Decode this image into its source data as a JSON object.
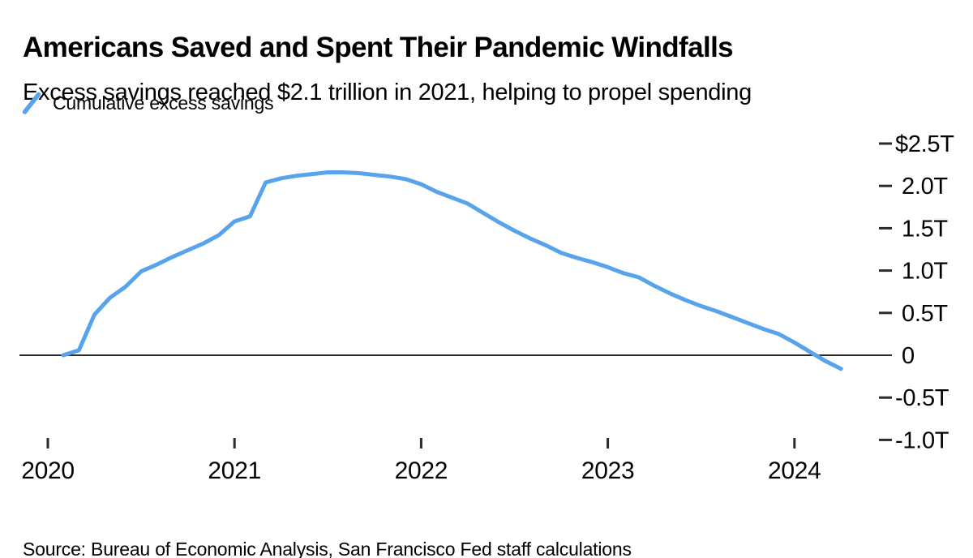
{
  "page": {
    "background": "#ffffff",
    "text_color": "#000000"
  },
  "chart_data": {
    "type": "line",
    "title": "Americans Saved and Spent Their Pandemic Windfalls",
    "subtitle": "Excess savings reached $2.1 trillion in 2021, helping to propel spending",
    "source": "Source: Bureau of Economic Analysis, San Francisco Fed staff calculations",
    "legend": {
      "label": "Cumulative excess savings",
      "position": "top-left",
      "marker": "slash"
    },
    "unit": "trillions of US dollars",
    "grid": false,
    "zero_line": true,
    "y_axis_side": "right",
    "xlim": [
      2019.95,
      2024.55
    ],
    "ylim": [
      -1.0,
      2.5
    ],
    "axis_color": "#2b2b2b",
    "series": [
      {
        "name": "Cumulative excess savings",
        "color": "#57A3EC",
        "x": [
          2020.083,
          2020.167,
          2020.25,
          2020.333,
          2020.417,
          2020.5,
          2020.583,
          2020.667,
          2020.75,
          2020.833,
          2020.917,
          2021,
          2021.083,
          2021.167,
          2021.25,
          2021.333,
          2021.417,
          2021.5,
          2021.583,
          2021.667,
          2021.75,
          2021.833,
          2021.917,
          2022,
          2022.083,
          2022.167,
          2022.25,
          2022.333,
          2022.417,
          2022.5,
          2022.583,
          2022.667,
          2022.75,
          2022.833,
          2022.917,
          2023,
          2023.083,
          2023.167,
          2023.25,
          2023.333,
          2023.417,
          2023.5,
          2023.583,
          2023.667,
          2023.75,
          2023.833,
          2023.917,
          2024,
          2024.083,
          2024.167,
          2024.25
        ],
        "values": [
          0.0,
          0.06,
          0.48,
          0.68,
          0.81,
          0.99,
          1.07,
          1.16,
          1.24,
          1.32,
          1.42,
          1.58,
          1.64,
          2.04,
          2.09,
          2.12,
          2.14,
          2.16,
          2.16,
          2.15,
          2.13,
          2.11,
          2.08,
          2.02,
          1.93,
          1.86,
          1.79,
          1.68,
          1.57,
          1.47,
          1.38,
          1.3,
          1.21,
          1.15,
          1.1,
          1.04,
          0.97,
          0.92,
          0.82,
          0.73,
          0.65,
          0.58,
          0.52,
          0.45,
          0.38,
          0.31,
          0.25,
          0.15,
          0.04,
          -0.07,
          -0.16
        ]
      }
    ],
    "xticks": [
      {
        "x": 2020,
        "label": "2020"
      },
      {
        "x": 2021,
        "label": "2021"
      },
      {
        "x": 2022,
        "label": "2022"
      },
      {
        "x": 2023,
        "label": "2023"
      },
      {
        "x": 2024,
        "label": "2024"
      }
    ],
    "yticks": [
      {
        "v": 2.5,
        "label": "$2.5T"
      },
      {
        "v": 2.0,
        "label": "2.0T"
      },
      {
        "v": 1.5,
        "label": "1.5T"
      },
      {
        "v": 1.0,
        "label": "1.0T"
      },
      {
        "v": 0.5,
        "label": "0.5T"
      },
      {
        "v": 0,
        "label": "0"
      },
      {
        "v": -0.5,
        "label": "-0.5T"
      },
      {
        "v": -1.0,
        "label": "-1.0T"
      }
    ]
  }
}
